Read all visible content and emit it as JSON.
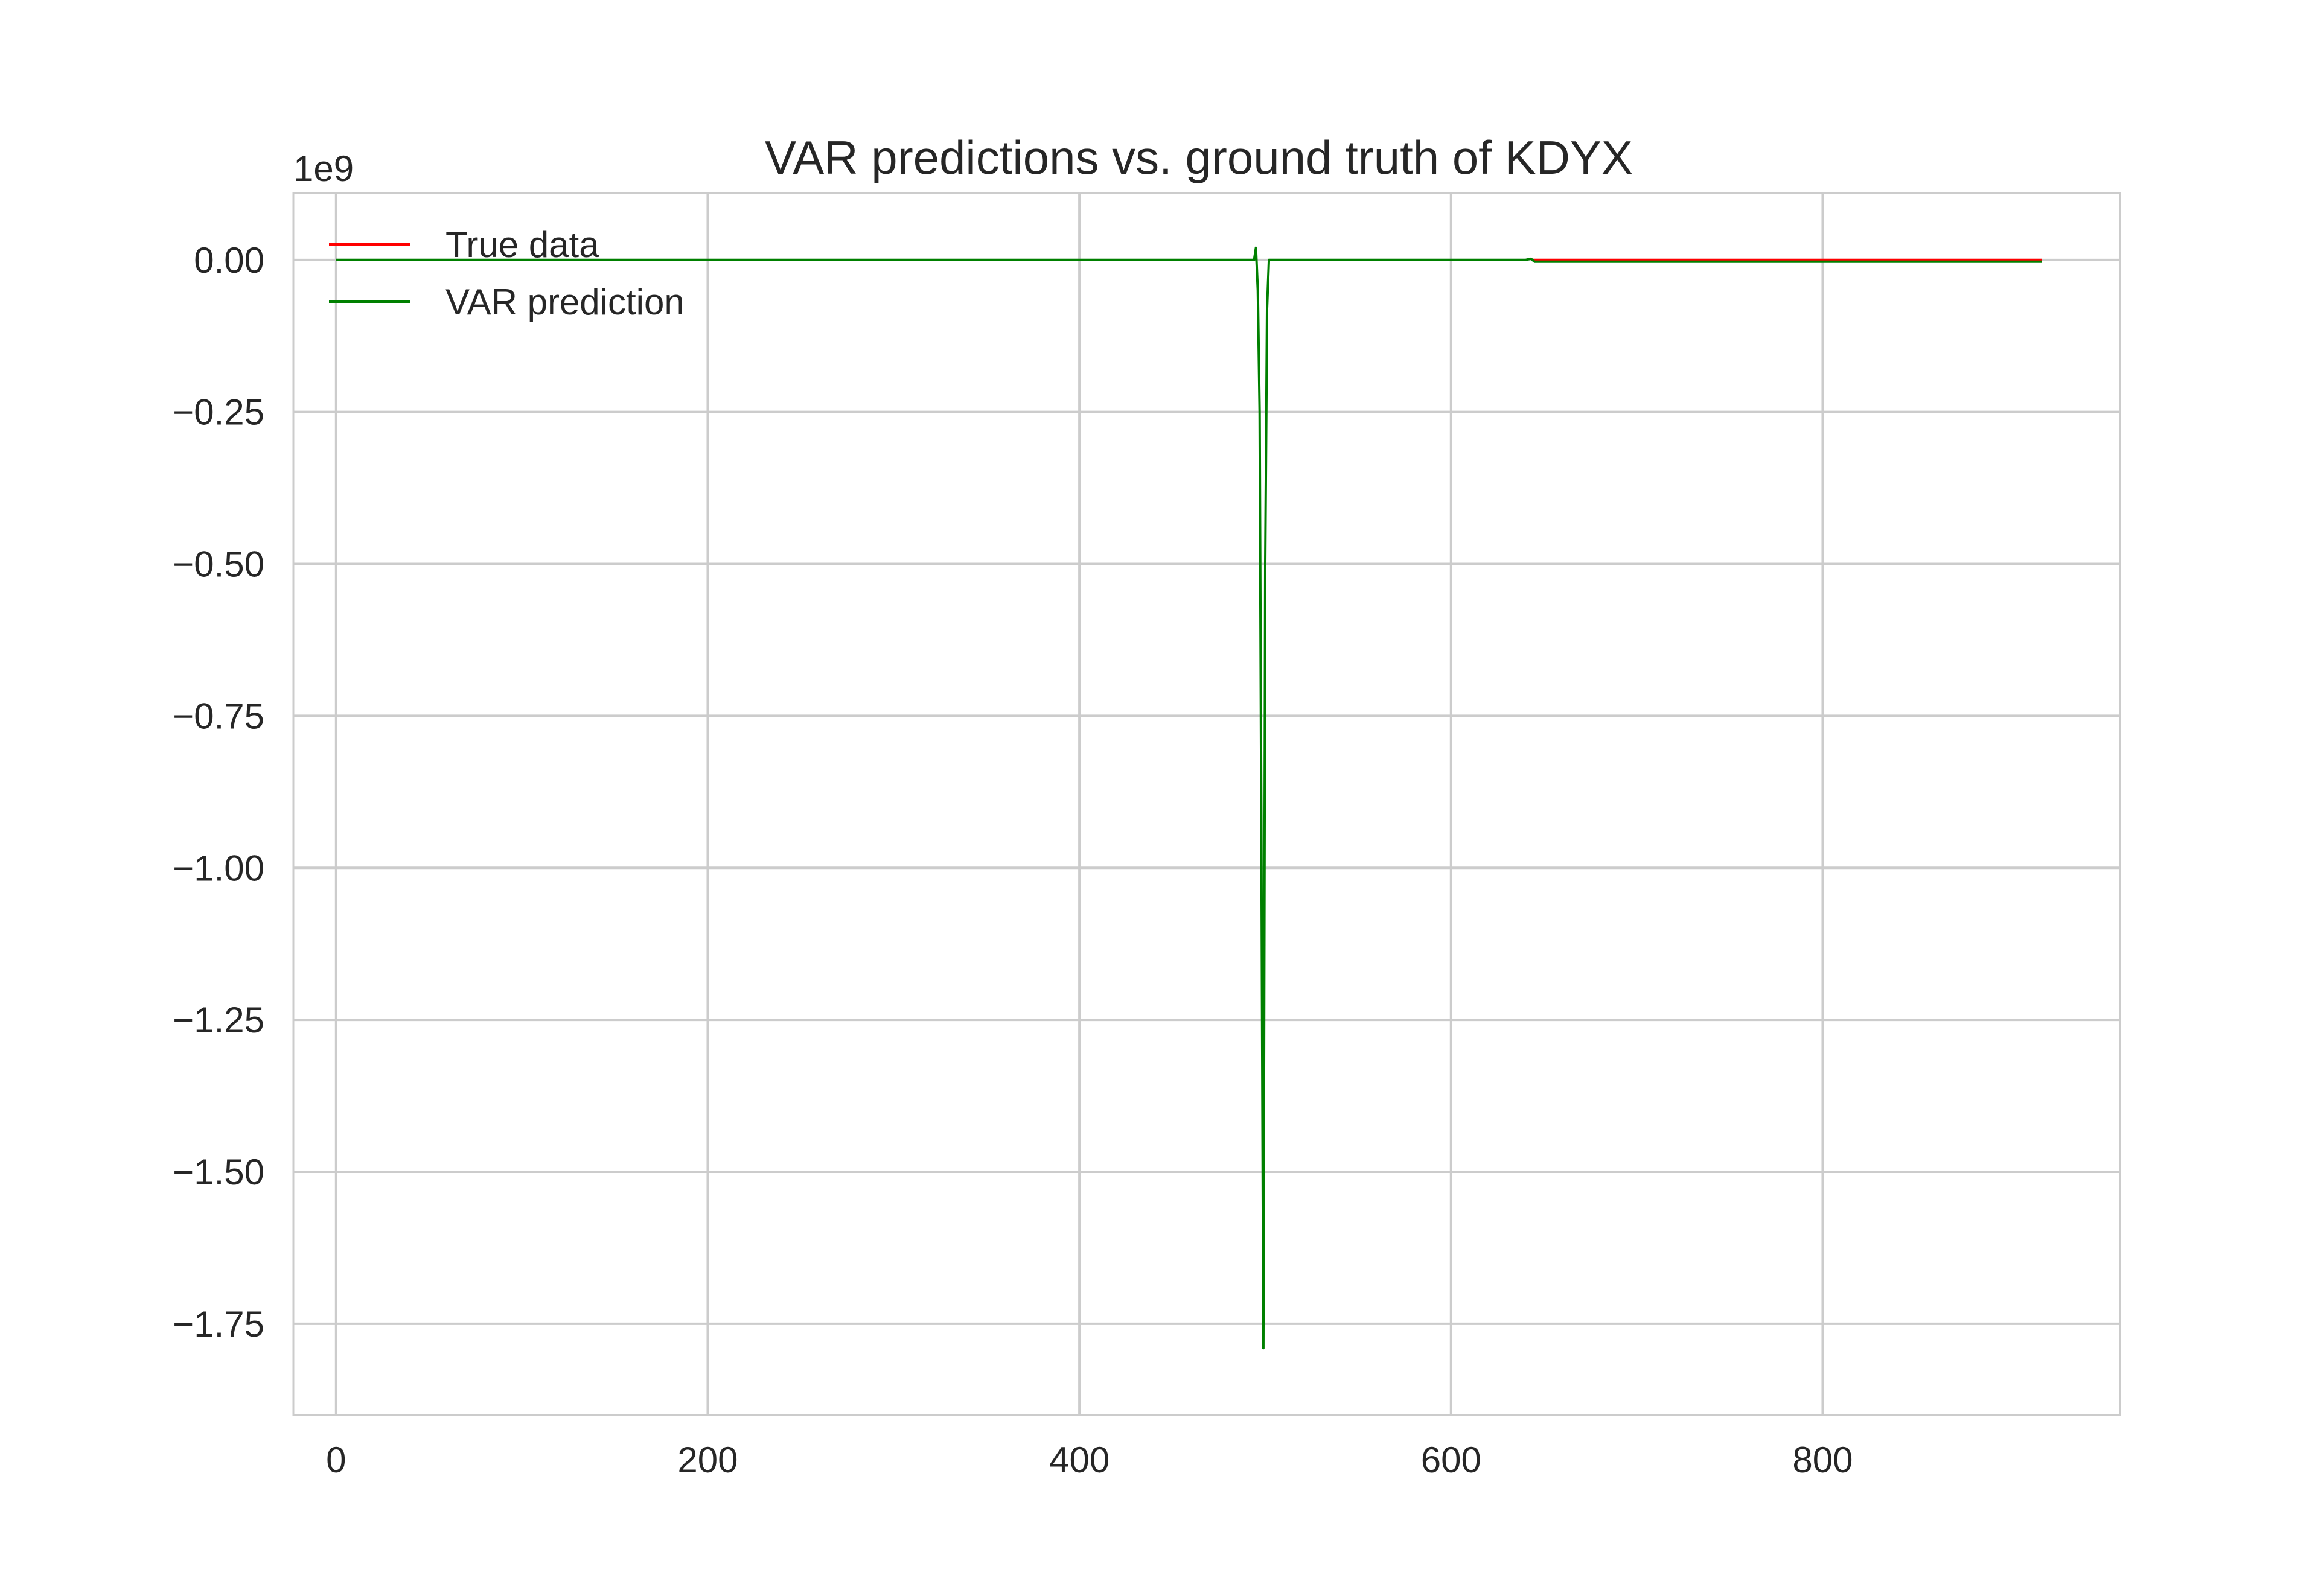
{
  "chart_data": {
    "type": "line",
    "title": "VAR predictions vs. ground truth of KDYX",
    "xlabel": "",
    "ylabel": "",
    "y_offset_text": "1e9",
    "xlim": [
      -23,
      960
    ],
    "ylim": [
      -1.9,
      0.11
    ],
    "y_scale_multiplier": 1000000000,
    "x_ticks": [
      0,
      200,
      400,
      600,
      800
    ],
    "x_tick_labels": [
      "0",
      "200",
      "400",
      "600",
      "800"
    ],
    "y_ticks": [
      0.0,
      -0.25,
      -0.5,
      -0.75,
      -1.0,
      -1.25,
      -1.5,
      -1.75
    ],
    "y_tick_labels": [
      "0.00",
      "−0.25",
      "−0.50",
      "−0.75",
      "−1.00",
      "−1.25",
      "−1.50",
      "−1.75"
    ],
    "grid": true,
    "legend_position": "top-left",
    "series": [
      {
        "name": "True data",
        "color": "#ff0000",
        "x": [
          643,
          700,
          800,
          918
        ],
        "y": [
          0.0,
          0.0,
          0.0,
          0.0
        ]
      },
      {
        "name": "VAR prediction",
        "color": "#008000",
        "x": [
          0,
          100,
          200,
          300,
          400,
          480,
          494,
          495,
          496,
          497,
          498,
          499,
          500,
          501,
          502,
          503,
          550,
          600,
          640,
          643,
          645,
          650,
          700,
          800,
          918
        ],
        "y": [
          0.0,
          0.0,
          0.0,
          0.0,
          0.0,
          0.0,
          0.0,
          0.02,
          -0.05,
          -0.25,
          -1.0,
          -1.79,
          -0.5,
          -0.08,
          0.0,
          0.0,
          0.0,
          0.0,
          0.0,
          0.002,
          -0.003,
          -0.003,
          -0.003,
          -0.003,
          -0.003
        ]
      }
    ]
  }
}
